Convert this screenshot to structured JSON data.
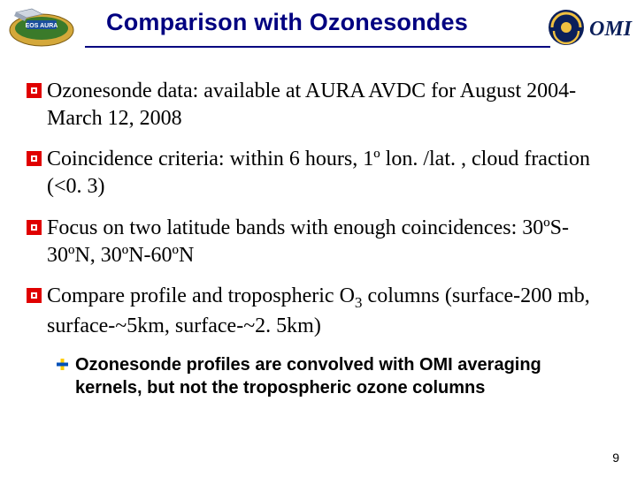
{
  "title": "Comparison with Ozonesondes",
  "colors": {
    "title": "#000080",
    "hr": "#000080",
    "bullet_outer": "#e00000",
    "bullet_inner": "#ffffff",
    "sub_bullet_a": "#0050b8",
    "sub_bullet_b": "#ffcc00",
    "text": "#000000",
    "eos_blue": "#1a4f9c",
    "eos_green": "#3a7a2a",
    "eos_gold": "#d4a83a",
    "omi_navy": "#0b1f5a",
    "omi_gold": "#f0c040",
    "page_num": "#000000"
  },
  "bullets": [
    "Ozonesonde data: available at AURA AVDC for August 2004-March 12, 2008",
    "Coincidence criteria: within 6 hours, 1º lon. /lat. , cloud fraction (<0. 3)",
    "Focus on two latitude bands with enough coincidences: 30ºS-30ºN, 30ºN-60ºN",
    "Compare profile and tropospheric O|3| columns (surface-200 mb, surface-~5km, surface-~2. 5km)"
  ],
  "sub_bullet": "Ozonesonde profiles are convolved with OMI averaging kernels, but not the tropospheric ozone columns",
  "left_logo_label": "EOS AURA",
  "right_logo_label": "OMI",
  "page_number": "9",
  "fonts": {
    "title_size": 27,
    "bullet_size": 24,
    "sub_size": 20,
    "pagenum_size": 14
  }
}
